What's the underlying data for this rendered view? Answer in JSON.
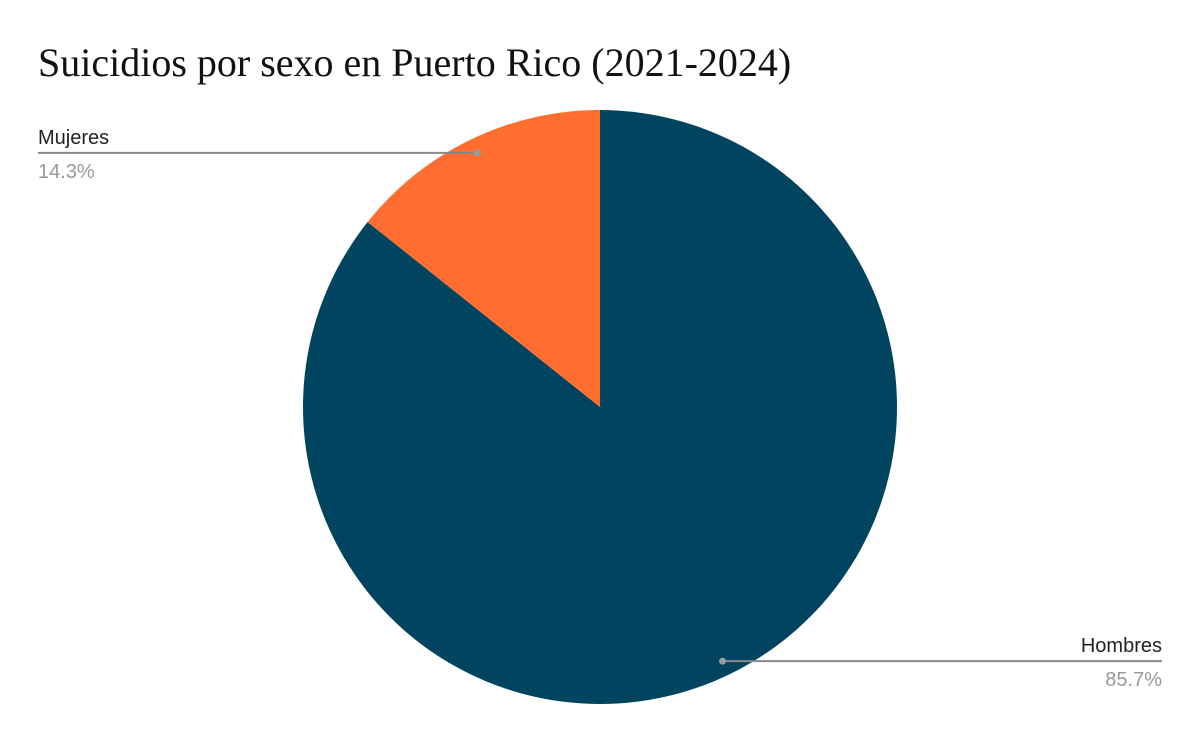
{
  "chart_data": {
    "type": "pie",
    "title": "Suicidios por sexo en Puerto Rico (2021-2024)",
    "categories": [
      "Hombres",
      "Mujeres"
    ],
    "values": [
      85.7,
      14.3
    ],
    "value_labels": [
      "85.7%",
      "14.3%"
    ],
    "colors": [
      "#00445f",
      "#ff6d31"
    ]
  }
}
